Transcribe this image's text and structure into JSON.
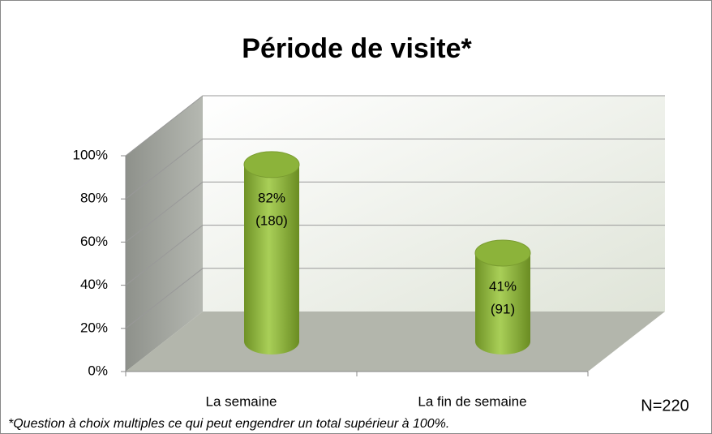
{
  "chart_data": {
    "type": "cylinder-bar",
    "title": "Période de visite*",
    "categories": [
      "La semaine",
      "La fin de semaine"
    ],
    "values": [
      82,
      41
    ],
    "value_labels": [
      "82%",
      "41%"
    ],
    "count_labels": [
      "(180)",
      "(91)"
    ],
    "color": "#8cb33a",
    "ylim": [
      0,
      100
    ],
    "yticks": [
      {
        "value": 0,
        "label": "0%"
      },
      {
        "value": 20,
        "label": "20%"
      },
      {
        "value": 40,
        "label": "40%"
      },
      {
        "value": 60,
        "label": "60%"
      },
      {
        "value": 80,
        "label": "80%"
      },
      {
        "value": 100,
        "label": "100%"
      }
    ],
    "grid": true,
    "annotation": "N=220",
    "footnote": "*Question à choix multiples ce qui peut engendrer un total supérieur à 100%."
  }
}
